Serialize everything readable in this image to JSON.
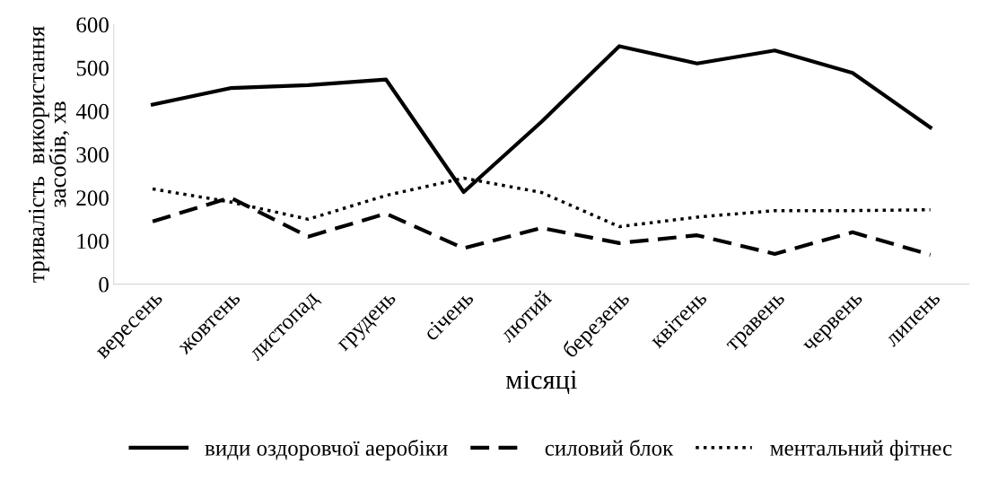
{
  "chart_data": {
    "type": "line",
    "xlabel": "місяці",
    "ylabel": "тривалість  використання засобів, хв",
    "categories": [
      "вересень",
      "жовтень",
      "листопад",
      "грудень",
      "січень",
      "лютий",
      "березень",
      "квітень",
      "травень",
      "червень",
      "липень"
    ],
    "series": [
      {
        "name": "види оздоровчої аеробіки",
        "color": "#000000",
        "line_style": "solid",
        "values": [
          415,
          453,
          460,
          473,
          213,
          375,
          550,
          510,
          540,
          488,
          362
        ]
      },
      {
        "name": "силовий блок",
        "color": "#000000",
        "line_style": "dashed",
        "values": [
          145,
          200,
          110,
          163,
          83,
          130,
          95,
          113,
          70,
          120,
          68
        ]
      },
      {
        "name": "ментальний фітнес",
        "color": "#000000",
        "line_style": "dotted",
        "values": [
          220,
          190,
          150,
          205,
          245,
          212,
          133,
          155,
          170,
          170,
          172
        ]
      }
    ],
    "ylim": [
      0,
      600
    ],
    "yticks": [
      0,
      100,
      200,
      300,
      400,
      500,
      600
    ],
    "grid": false,
    "legend": "bottom",
    "marker": "none"
  }
}
